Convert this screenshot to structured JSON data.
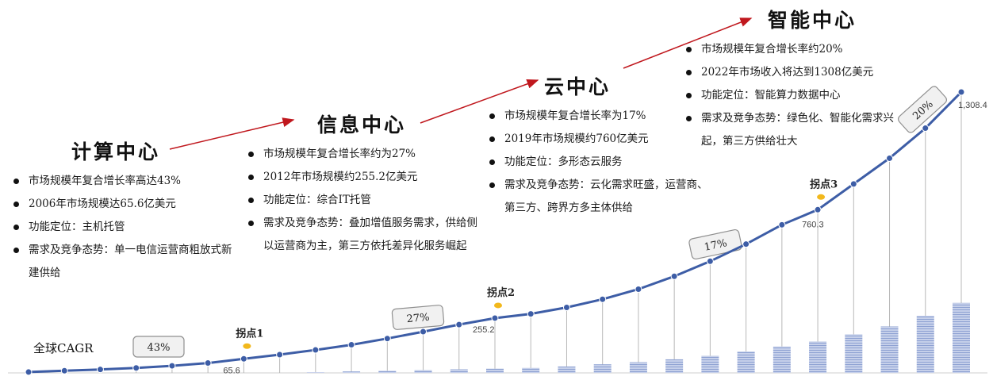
{
  "cagr_label": "全球CAGR",
  "stages": [
    {
      "title": "计算中心",
      "bullets": [
        "市场规模年复合增长率高达43%",
        "2006年市场规模达65.6亿美元",
        "功能定位：主机托管",
        "需求及竞争态势：单一电信运营商粗放式新建供给"
      ]
    },
    {
      "title": "信息中心",
      "bullets": [
        "市场规模年复合增长率约为27%",
        "2012年市场规模约255.2亿美元",
        "功能定位：综合IT托管",
        "需求及竞争态势：叠加增值服务需求，供给侧以运营商为主，第三方依托差异化服务崛起"
      ]
    },
    {
      "title": "云中心",
      "bullets": [
        "市场规模年复合增长率为17%",
        "2019年市场规模约760亿美元",
        "功能定位：多形态云服务",
        "需求及竞争态势：云化需求旺盛，运营商、第三方、跨界方多主体供给"
      ]
    },
    {
      "title": "智能中心",
      "bullets": [
        "市场规模年复合增长率约20%",
        "2022年市场收入将达到1308亿美元",
        "功能定位：智能算力数据中心",
        "需求及竞争态势：绿色化、智能化需求兴起，第三方供给壮大"
      ]
    }
  ],
  "chart_data": {
    "type": "line",
    "series": [
      {
        "values": [
          4,
          10,
          16,
          23,
          33,
          46,
          65.6,
          85,
          107,
          131,
          160,
          192,
          225,
          255.2,
          275,
          305,
          343,
          390,
          450,
          520,
          600,
          690,
          760.3,
          880,
          1000,
          1140,
          1308.4
        ]
      }
    ],
    "bars": [
      0,
      0,
      0,
      0,
      0,
      0,
      0,
      0,
      1,
      2,
      3,
      4,
      5,
      6,
      7,
      9,
      12,
      15,
      19,
      24,
      30,
      37,
      44,
      54,
      65,
      80,
      98
    ],
    "value_labels": [
      {
        "index": 6,
        "text": "65.6"
      },
      {
        "index": 13,
        "text": "255.2"
      },
      {
        "index": 22,
        "text": "760.3"
      },
      {
        "index": 26,
        "text": "1,308.4"
      }
    ],
    "inflection_points": [
      {
        "index": 6,
        "label": "拐点1"
      },
      {
        "index": 13,
        "label": "拐点2"
      },
      {
        "index": 22,
        "label": "拐点3"
      }
    ],
    "cagr_badges": [
      "43%",
      "27%",
      "17%",
      "20%"
    ],
    "colors": {
      "line": "#3d5da6",
      "bar": "#a9b7dc",
      "arrow": "#c0181e",
      "marker": "#f2b81c"
    }
  }
}
